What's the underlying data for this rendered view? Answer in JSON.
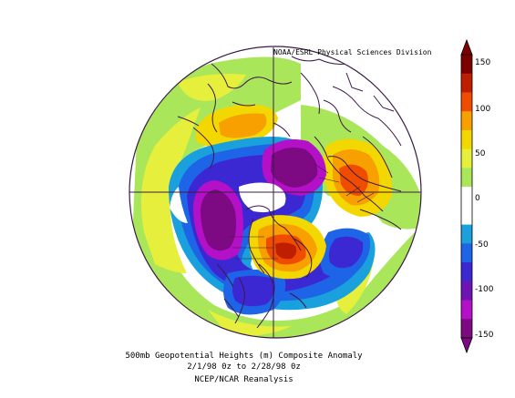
{
  "map": {
    "credit": "NOAA/ESRL Physical Sciences Division",
    "caption_line1": "500mb Geopotential Heights (m)   Composite Anomaly",
    "caption_line2": "2/1/98 0z  to 2/28/98 0z",
    "caption_line3": "NCEP/NCAR Reanalysis",
    "projection": "north-polar-stereographic",
    "variable": "500mb geopotential height anomaly",
    "colorbar": {
      "ticks": [
        "150",
        "100",
        "50",
        "0",
        "-50",
        "-100",
        "-150"
      ],
      "colors": [
        "#7d0000",
        "#c01e00",
        "#ef4c00",
        "#f7a000",
        "#f2d800",
        "#e6f03c",
        "#aae65a",
        "#ffffff",
        "#ffffff",
        "#1aa0dc",
        "#1e64e6",
        "#3c28d2",
        "#6e14b4",
        "#b410c8",
        "#7d0a82"
      ]
    }
  }
}
